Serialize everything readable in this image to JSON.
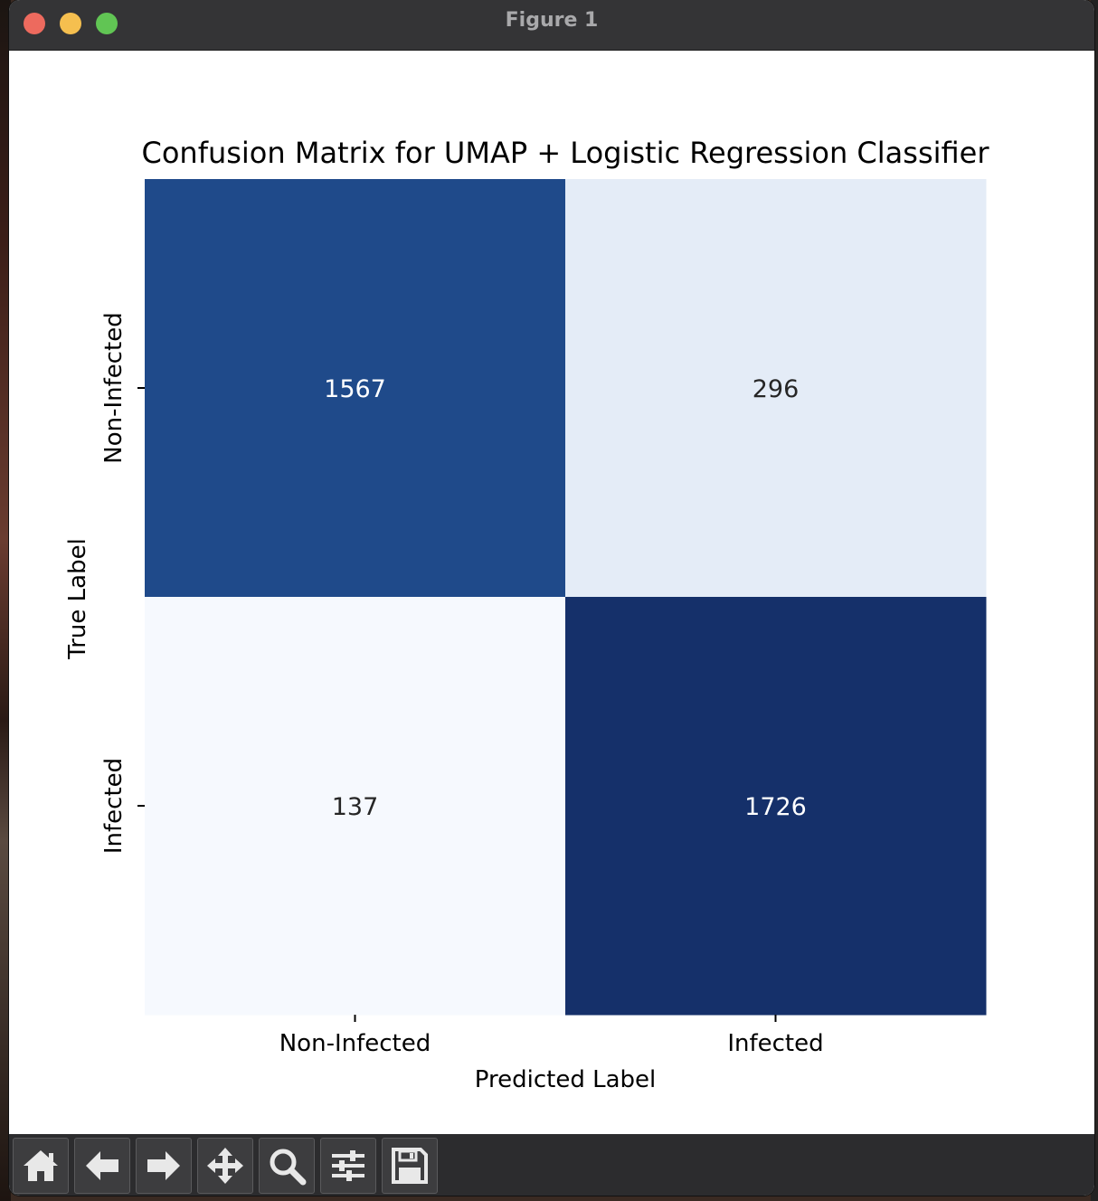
{
  "window": {
    "title": "Figure 1"
  },
  "chart_data": {
    "type": "heatmap",
    "title": "Confusion Matrix for UMAP + Logistic Regression Classifier",
    "xlabel": "Predicted Label",
    "ylabel": "True Label",
    "x_categories": [
      "Non-Infected",
      "Infected"
    ],
    "y_categories": [
      "Non-Infected",
      "Infected"
    ],
    "values": [
      [
        1567,
        296
      ],
      [
        137,
        1726
      ]
    ],
    "colormap": "Blues",
    "cell_colors": [
      [
        "#1f4a8a",
        "#e4ecf7"
      ],
      [
        "#f6f9fe",
        "#15306a"
      ]
    ],
    "annotation_colors": [
      [
        "#ffffff",
        "#262626"
      ],
      [
        "#262626",
        "#ffffff"
      ]
    ],
    "colorbar": false
  },
  "toolbar": {
    "buttons": [
      {
        "name": "home-button",
        "icon": "home-icon"
      },
      {
        "name": "back-button",
        "icon": "arrow-left-icon"
      },
      {
        "name": "forward-button",
        "icon": "arrow-right-icon"
      },
      {
        "name": "pan-button",
        "icon": "move-icon"
      },
      {
        "name": "zoom-button",
        "icon": "magnifier-icon"
      },
      {
        "name": "configure-subplots-button",
        "icon": "sliders-icon"
      },
      {
        "name": "save-button",
        "icon": "floppy-disk-icon"
      }
    ]
  }
}
